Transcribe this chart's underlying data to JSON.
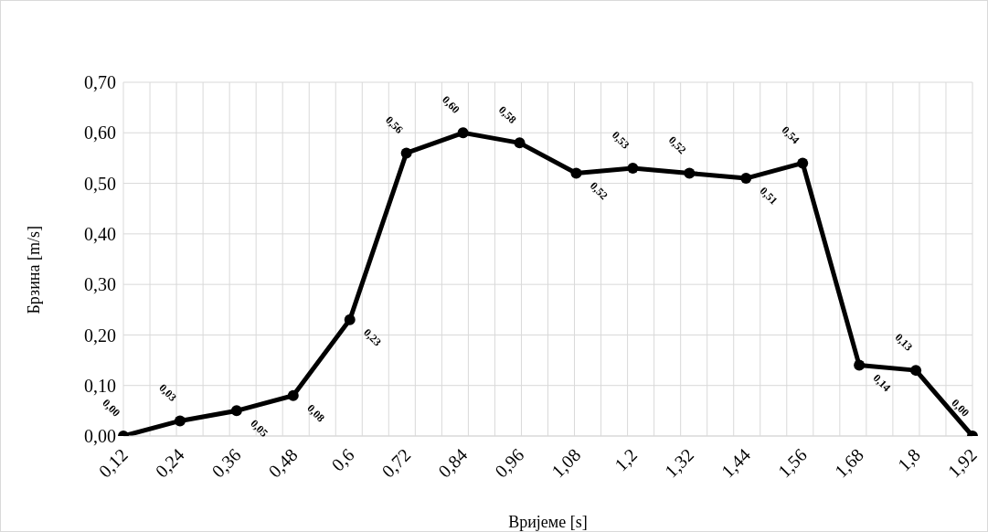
{
  "chart_data": {
    "type": "line",
    "xlabel": "Вријеме [s]",
    "ylabel": "Брзина [m/s]",
    "categories": [
      "0,12",
      "0,24",
      "0,36",
      "0,48",
      "0,6",
      "0,72",
      "0,84",
      "0,96",
      "1,08",
      "1,2",
      "1,32",
      "1,44",
      "1,56",
      "1,68",
      "1,8",
      "1,92"
    ],
    "series": [
      {
        "color": "#000000",
        "values": [
          0.0,
          0.03,
          0.05,
          0.08,
          0.23,
          0.56,
          0.6,
          0.58,
          0.52,
          0.53,
          0.52,
          0.51,
          0.54,
          0.14,
          0.13,
          0.0
        ],
        "value_labels": [
          "0,00",
          "0,03",
          "0,05",
          "0,08",
          "0,23",
          "0,56",
          "0,60",
          "0,58",
          "0,52",
          "0,53",
          "0,52",
          "0,51",
          "0,54",
          "0,14",
          "0,13",
          "0,00"
        ]
      }
    ],
    "ylim": [
      0,
      0.7
    ],
    "yticks": [
      {
        "value": 0,
        "label": "0,00"
      },
      {
        "value": 0.1,
        "label": "0,10"
      },
      {
        "value": 0.2,
        "label": "0,20"
      },
      {
        "value": 0.3,
        "label": "0,30"
      },
      {
        "value": 0.4,
        "label": "0,40"
      },
      {
        "value": 0.5,
        "label": "0,50"
      },
      {
        "value": 0.6,
        "label": "0,60"
      },
      {
        "value": 0.7,
        "label": "0,70"
      }
    ],
    "grid": true,
    "marker": "circle",
    "line_style": "solid"
  }
}
